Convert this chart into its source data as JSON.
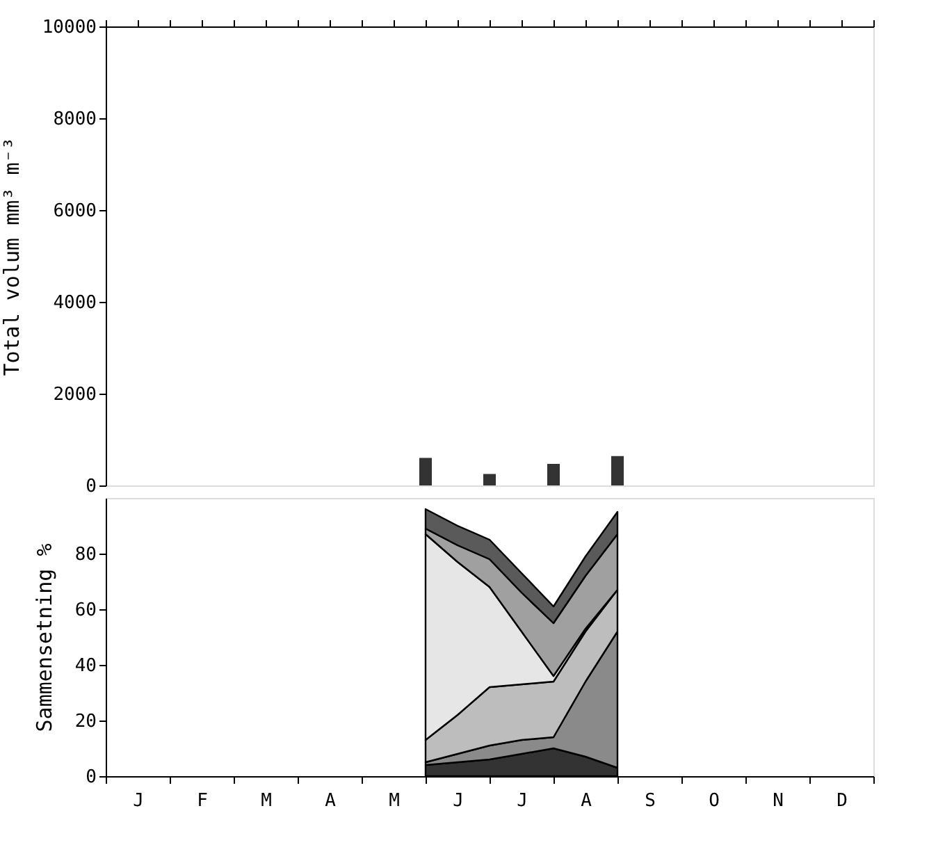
{
  "chart_data": [
    {
      "type": "bar",
      "ylabel": "Total volum mm³ m⁻³",
      "categories": [
        null,
        null,
        null,
        null,
        null,
        null,
        null,
        null,
        null,
        null,
        null,
        null,
        null,
        null,
        null,
        null,
        null,
        null,
        null,
        null,
        null,
        null,
        null,
        null,
        null
      ],
      "values": [
        null,
        null,
        null,
        null,
        null,
        null,
        null,
        null,
        null,
        null,
        600,
        null,
        250,
        null,
        470,
        null,
        640,
        null,
        null,
        null,
        null,
        null,
        null,
        null,
        null
      ],
      "color": "#333333",
      "ylim": [
        0,
        10000
      ],
      "yticks": [
        0,
        2000,
        4000,
        6000,
        8000,
        10000
      ],
      "tick_labels": "y"
    },
    {
      "type": "area",
      "stacked": true,
      "ylabel": "Sammensetning %",
      "categories": [
        null,
        "J",
        null,
        "F",
        null,
        "M",
        null,
        "A",
        null,
        "M",
        null,
        "J",
        null,
        "J",
        null,
        "A",
        null,
        "S",
        null,
        "O",
        null,
        "N",
        null,
        "D",
        null
      ],
      "series": [
        {
          "color": "#333333",
          "values": [
            null,
            null,
            null,
            null,
            null,
            null,
            null,
            null,
            null,
            null,
            4,
            5,
            6,
            8,
            10,
            7,
            3,
            null,
            null,
            null,
            null,
            null,
            null,
            null,
            null
          ]
        },
        {
          "color": "#8a8a8a",
          "values": [
            null,
            null,
            null,
            null,
            null,
            null,
            null,
            null,
            null,
            null,
            1,
            3,
            5,
            5,
            4,
            27,
            49,
            null,
            null,
            null,
            null,
            null,
            null,
            null,
            null
          ]
        },
        {
          "color": "#bdbdbd",
          "values": [
            null,
            null,
            null,
            null,
            null,
            null,
            null,
            null,
            null,
            null,
            8,
            14,
            21,
            20,
            20,
            18,
            15,
            null,
            null,
            null,
            null,
            null,
            null,
            null,
            null
          ]
        },
        {
          "color": "#e6e6e6",
          "values": [
            null,
            null,
            null,
            null,
            null,
            null,
            null,
            null,
            null,
            null,
            74,
            55,
            36,
            19,
            2,
            1,
            0,
            null,
            null,
            null,
            null,
            null,
            null,
            null,
            null
          ]
        },
        {
          "color": "#a0a0a0",
          "values": [
            null,
            null,
            null,
            null,
            null,
            null,
            null,
            null,
            null,
            null,
            2,
            6,
            10,
            14,
            19,
            19,
            20,
            null,
            null,
            null,
            null,
            null,
            null,
            null,
            null
          ]
        },
        {
          "color": "#5a5a5a",
          "values": [
            null,
            null,
            null,
            null,
            null,
            null,
            null,
            null,
            null,
            null,
            7,
            7,
            7,
            7,
            6,
            7,
            8,
            null,
            null,
            null,
            null,
            null,
            null,
            null,
            null
          ]
        }
      ],
      "ylim": [
        0,
        100
      ],
      "yticks": [
        0,
        20,
        40,
        60,
        80
      ]
    }
  ]
}
